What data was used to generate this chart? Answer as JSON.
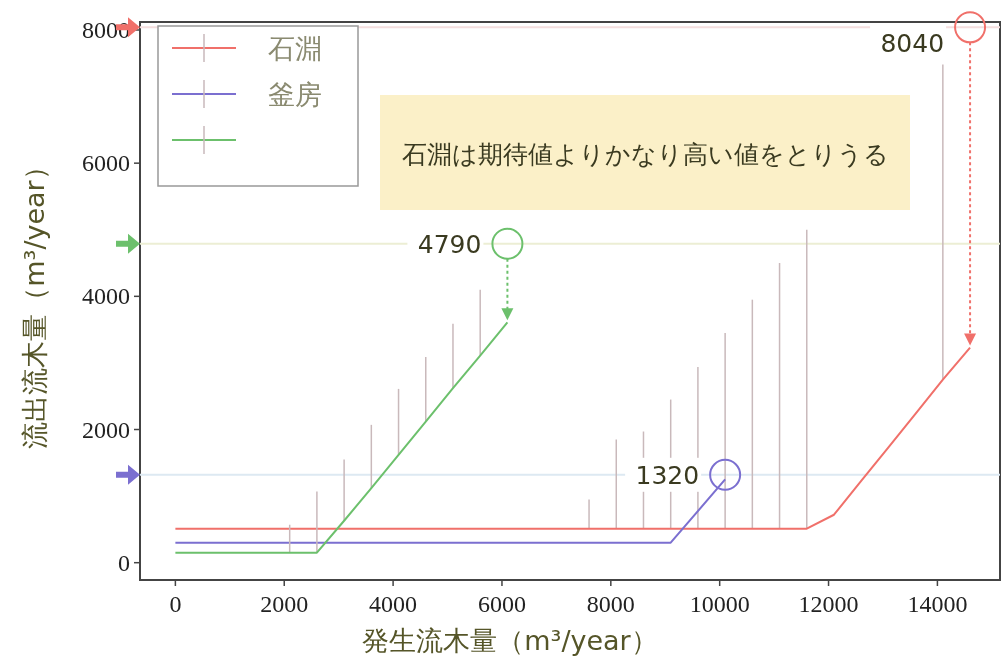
{
  "chart_data": {
    "type": "line",
    "xlabel": "発生流木量（m³/year）",
    "ylabel": "流出流木量（m³/year）",
    "xlim": [
      -650,
      15150
    ],
    "ylim": [
      -260,
      8120
    ],
    "xticks": [
      0,
      2000,
      4000,
      6000,
      8000,
      10000,
      12000,
      14000
    ],
    "yticks": [
      0,
      2000,
      4000,
      6000,
      8000
    ],
    "legend": "top left",
    "series": [
      {
        "name": "石淵",
        "color": "#f0706a",
        "x": [
          0,
          7600,
          8100,
          8600,
          9100,
          9600,
          10100,
          10600,
          11100,
          11600,
          12100,
          12600,
          13100,
          13600,
          14100,
          14600
        ],
        "values": [
          510,
          510,
          510,
          510,
          510,
          510,
          510,
          510,
          510,
          510,
          720,
          1230,
          1730,
          2240,
          2750,
          3230
        ],
        "errors": [
          null,
          [
            510,
            950
          ],
          [
            510,
            1850
          ],
          [
            510,
            1970
          ],
          [
            510,
            2450
          ],
          [
            510,
            2940
          ],
          [
            510,
            3450
          ],
          [
            510,
            3950
          ],
          [
            510,
            4500
          ],
          [
            510,
            5000
          ],
          null,
          null,
          null,
          null,
          [
            2750,
            7480
          ],
          null
        ]
      },
      {
        "name": "釜房",
        "color": "#7b6fd0",
        "x": [
          0,
          9100,
          10100
        ],
        "values": [
          300,
          300,
          1250
        ]
      },
      {
        "color": "#6cc06c",
        "x": [
          0,
          2100,
          2600,
          3100,
          3600,
          4100,
          4600,
          5100,
          5600,
          6100
        ],
        "values": [
          150,
          150,
          150,
          630,
          1120,
          1620,
          2120,
          2620,
          3110,
          3610
        ],
        "errors": [
          null,
          [
            150,
            570
          ],
          [
            150,
            1070
          ],
          [
            630,
            1550
          ],
          [
            1120,
            2070
          ],
          [
            1620,
            2610
          ],
          [
            2120,
            3090
          ],
          [
            2620,
            3590
          ],
          [
            3110,
            4100
          ],
          null
        ]
      }
    ],
    "ref_lines": [
      {
        "axis": "y",
        "value": 8040,
        "color": "#f4dede"
      },
      {
        "axis": "y",
        "value": 4790,
        "color": "#eceed4"
      },
      {
        "axis": "y",
        "value": 1320,
        "color": "#dde9f2"
      }
    ],
    "annotations": [
      "石淵は期待値よりかなり高い値をとりうる",
      {
        "text": "8040",
        "x": 14600,
        "y": 8040
      },
      {
        "text": "4790",
        "x": 6100,
        "y": 4790
      },
      {
        "text": "1320",
        "x": 10100,
        "y": 1320
      }
    ]
  }
}
